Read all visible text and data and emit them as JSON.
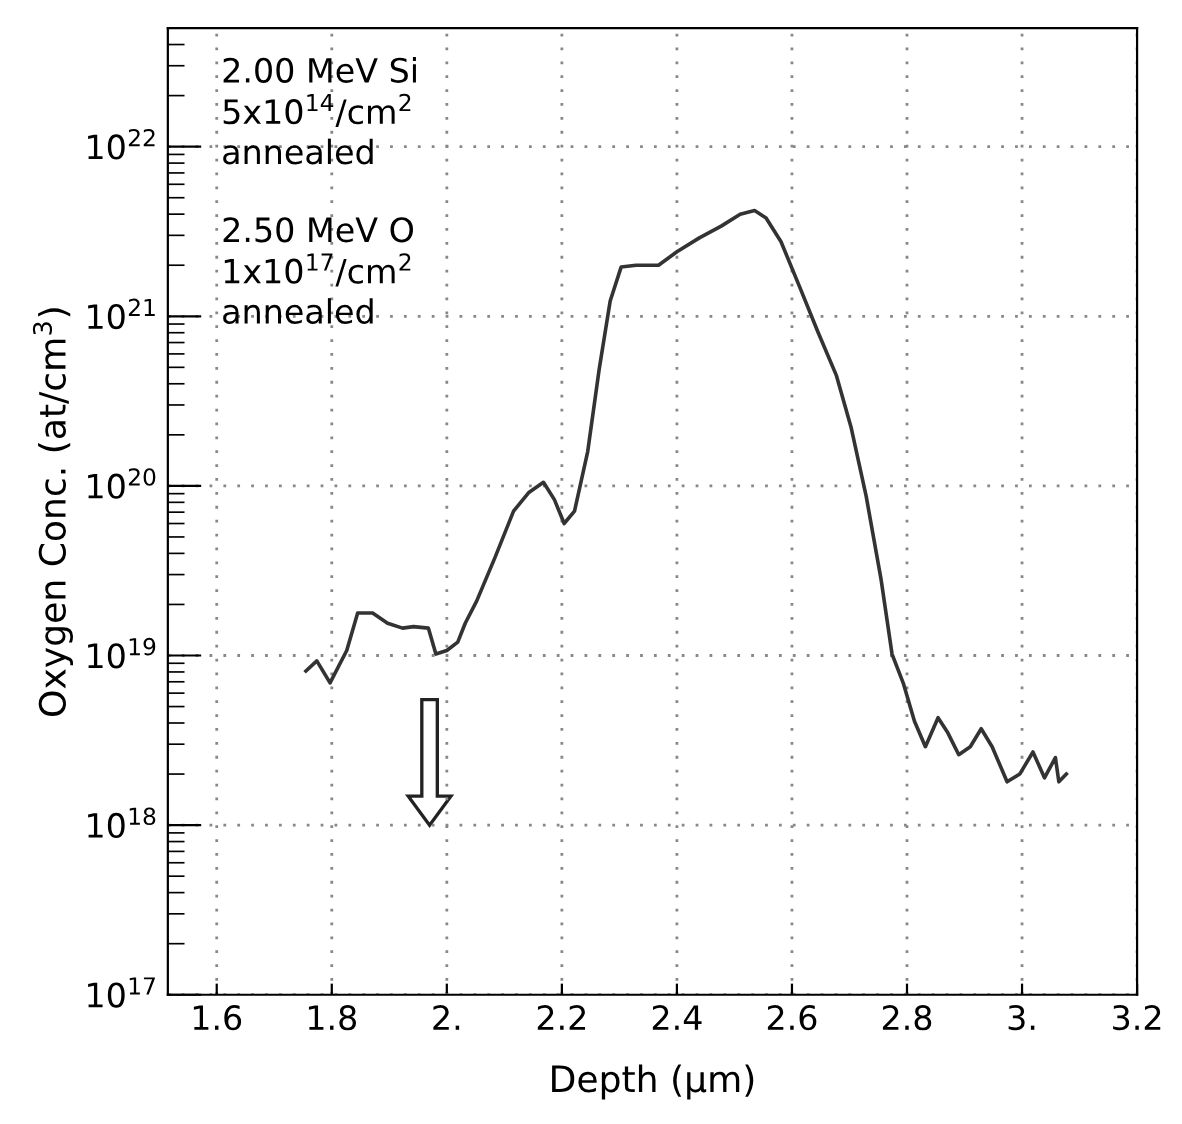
{
  "chart_data": {
    "type": "line",
    "xlabel": "Depth (μm)",
    "ylabel": "Oxygen Conc. (at/cm$^{3}$)",
    "annotations": [
      "2.00 MeV Si\n5x10$^{14}$/cm$^{2}$\nannealed",
      "2.50 MeV O\n1x10$^{17}$/cm$^{2}$\nannealed"
    ],
    "x": [
      1.755,
      1.774,
      1.797,
      1.826,
      1.845,
      1.871,
      1.897,
      1.923,
      1.942,
      1.968,
      1.981,
      2.0,
      2.019,
      2.032,
      2.052,
      2.084,
      2.116,
      2.142,
      2.168,
      2.187,
      2.204,
      2.222,
      2.245,
      2.265,
      2.284,
      2.303,
      2.329,
      2.368,
      2.4,
      2.439,
      2.477,
      2.51,
      2.535,
      2.555,
      2.581,
      2.613,
      2.645,
      2.677,
      2.703,
      2.729,
      2.755,
      2.774,
      2.794,
      2.813,
      2.832,
      2.854,
      2.871,
      2.89,
      2.91,
      2.929,
      2.948,
      2.974,
      2.996,
      3.019,
      3.039,
      3.058,
      3.064,
      3.077
    ],
    "series": [
      {
        "color": "#333333",
        "values": [
          8.1e+18,
          9.3e+18,
          6.9e+18,
          1.07e+19,
          1.78e+19,
          1.78e+19,
          1.55e+19,
          1.45e+19,
          1.48e+19,
          1.45e+19,
          1.02e+19,
          1.07e+19,
          1.2e+19,
          1.55e+19,
          2.1e+19,
          3.8e+19,
          7.1e+19,
          9.1e+19,
          1.05e+20,
          8.3e+19,
          6e+19,
          7.1e+19,
          1.6e+20,
          4.9e+20,
          1.23e+21,
          1.95e+21,
          2e+21,
          2e+21,
          2.4e+21,
          2.9e+21,
          3.4e+21,
          4e+21,
          4.2e+21,
          3.8e+21,
          2.75e+21,
          1.5e+21,
          8.1e+20,
          4.5e+20,
          2.2e+20,
          8.7e+19,
          2.8e+19,
          1.02e+19,
          6.8e+18,
          4.1e+18,
          2.9e+18,
          4.3e+18,
          3.5e+18,
          2.6e+18,
          2.9e+18,
          3.7e+18,
          2.9e+18,
          1.8e+18,
          2e+18,
          2.7e+18,
          1.9e+18,
          2.5e+18,
          1.8e+18,
          2e+18
        ]
      }
    ],
    "log": "y",
    "xlim": [
      1.515,
      3.2
    ],
    "ylim": [
      1e+17,
      5e+22
    ],
    "xticks": [
      1.6,
      1.8,
      {
        "value": 2.0,
        "label": "2."
      },
      2.2,
      2.4,
      2.6,
      2.8,
      {
        "value": 3.0,
        "label": "3."
      },
      3.2
    ],
    "yticks": [
      {
        "value": 1e+17,
        "label": "10$^{17}$"
      },
      {
        "value": 1e+18,
        "label": "10$^{18}$"
      },
      {
        "value": 1e+19,
        "label": "10$^{19}$"
      },
      {
        "value": 1e+20,
        "label": "10$^{20}$"
      },
      {
        "value": 1e+21,
        "label": "10$^{21}$"
      },
      {
        "value": 1e+22,
        "label": "10$^{22}$"
      }
    ],
    "grid": true,
    "marker": "none",
    "line_style": "solid",
    "legend": false
  }
}
